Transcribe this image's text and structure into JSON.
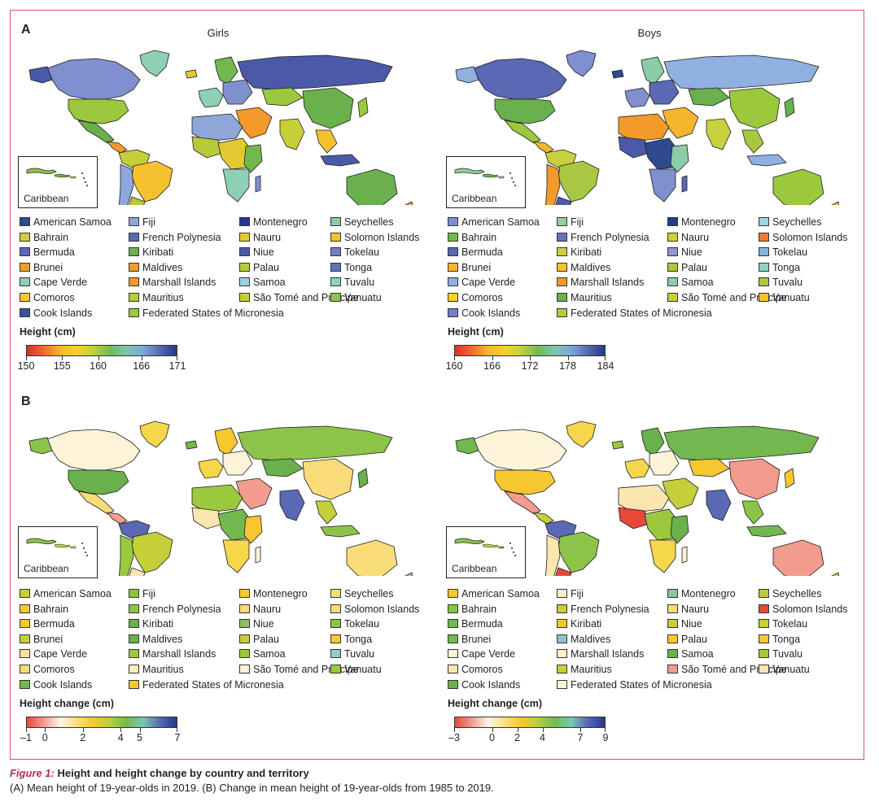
{
  "panels": [
    {
      "letter": "A",
      "maps": [
        {
          "title": "Girls",
          "inset_label": "Caribbean",
          "scale_title": "Height (cm)",
          "ticks": [
            "150",
            "155",
            "160",
            "166",
            "171"
          ],
          "tick_values": [
            150,
            155,
            160,
            166,
            171
          ],
          "domain": [
            150,
            171
          ],
          "items": [
            {
              "label": "American Samoa",
              "color": "#2f4a8e"
            },
            {
              "label": "Bahrain",
              "color": "#cfce3e"
            },
            {
              "label": "Bermuda",
              "color": "#5b68b4"
            },
            {
              "label": "Brunei",
              "color": "#f39a2a"
            },
            {
              "label": "Cape Verde",
              "color": "#8fd0b4"
            },
            {
              "label": "Comoros",
              "color": "#f7c62f"
            },
            {
              "label": "Cook Islands",
              "color": "#3a4f98"
            },
            {
              "label": "Fiji",
              "color": "#8ea7d8"
            },
            {
              "label": "French Polynesia",
              "color": "#5b68b4"
            },
            {
              "label": "Kiribati",
              "color": "#6ab04c"
            },
            {
              "label": "Maldives",
              "color": "#f39a2a"
            },
            {
              "label": "Marshall Islands",
              "color": "#f39a2a"
            },
            {
              "label": "Mauritius",
              "color": "#b8c93a"
            },
            {
              "label": "Federated States of Micronesia",
              "color": "#9cc83e"
            },
            {
              "label": "Montenegro",
              "color": "#23388e"
            },
            {
              "label": "Nauru",
              "color": "#e3c934"
            },
            {
              "label": "Niue",
              "color": "#4a5aa8"
            },
            {
              "label": "Palau",
              "color": "#b5cc3e"
            },
            {
              "label": "Samoa",
              "color": "#9bd0e6"
            },
            {
              "label": "São Tomé and Príncipe",
              "color": "#c6cf3a"
            },
            {
              "label": "Seychelles",
              "color": "#8ccca0"
            },
            {
              "label": "Solomon Islands",
              "color": "#f6c12e"
            },
            {
              "label": "Tokelau",
              "color": "#6f80c4"
            },
            {
              "label": "Tonga",
              "color": "#6573bc"
            },
            {
              "label": "Tuvalu",
              "color": "#8fd0c6"
            },
            {
              "label": "Vanuatu",
              "color": "#8cc44a"
            }
          ]
        },
        {
          "title": "Boys",
          "inset_label": "Caribbean",
          "scale_title": "Height (cm)",
          "ticks": [
            "160",
            "166",
            "172",
            "178",
            "184"
          ],
          "tick_values": [
            160,
            166,
            172,
            178,
            184
          ],
          "domain": [
            160,
            184
          ],
          "items": [
            {
              "label": "American Samoa",
              "color": "#7f8fcf"
            },
            {
              "label": "Bahrain",
              "color": "#72b84e"
            },
            {
              "label": "Bermuda",
              "color": "#5b68b4"
            },
            {
              "label": "Brunei",
              "color": "#f6b52e"
            },
            {
              "label": "Cape Verde",
              "color": "#8fb0e0"
            },
            {
              "label": "Comoros",
              "color": "#f8cf2e"
            },
            {
              "label": "Cook Islands",
              "color": "#6f80c4"
            },
            {
              "label": "Fiji",
              "color": "#94cf96"
            },
            {
              "label": "French Polynesia",
              "color": "#6573bc"
            },
            {
              "label": "Kiribati",
              "color": "#c9d040"
            },
            {
              "label": "Maldives",
              "color": "#f6c12e"
            },
            {
              "label": "Marshall Islands",
              "color": "#f39a2a"
            },
            {
              "label": "Mauritius",
              "color": "#6ab04c"
            },
            {
              "label": "Federated States of Micronesia",
              "color": "#b8c93a"
            },
            {
              "label": "Montenegro",
              "color": "#1e3c8e"
            },
            {
              "label": "Nauru",
              "color": "#cfce3e"
            },
            {
              "label": "Niue",
              "color": "#8e97d0"
            },
            {
              "label": "Palau",
              "color": "#a8c844"
            },
            {
              "label": "Samoa",
              "color": "#8ccca6"
            },
            {
              "label": "São Tomé and Príncipe",
              "color": "#c6cf3a"
            },
            {
              "label": "Seychelles",
              "color": "#9fd4e8"
            },
            {
              "label": "Solomon Islands",
              "color": "#f2782a"
            },
            {
              "label": "Tokelau",
              "color": "#80b8e0"
            },
            {
              "label": "Tonga",
              "color": "#8fd0c6"
            },
            {
              "label": "Tuvalu",
              "color": "#a8c844"
            },
            {
              "label": "Vanuatu",
              "color": "#f6c12e"
            }
          ]
        }
      ]
    },
    {
      "letter": "B",
      "maps": [
        {
          "title": "",
          "inset_label": "Caribbean",
          "scale_title": "Height change (cm)",
          "ticks": [
            "–1",
            "0",
            "2",
            "4",
            "5",
            "7"
          ],
          "tick_values": [
            -1,
            0,
            2,
            4,
            5,
            7
          ],
          "domain": [
            -1,
            7
          ],
          "items": [
            {
              "label": "American Samoa",
              "color": "#c4cf3a"
            },
            {
              "label": "Bahrain",
              "color": "#f6c72e"
            },
            {
              "label": "Bermuda",
              "color": "#f6c72e"
            },
            {
              "label": "Brunei",
              "color": "#c4cf3a"
            },
            {
              "label": "Cape Verde",
              "color": "#f9e0a0"
            },
            {
              "label": "Comoros",
              "color": "#f9dc7a"
            },
            {
              "label": "Cook Islands",
              "color": "#72b84e"
            },
            {
              "label": "Fiji",
              "color": "#8cc44a"
            },
            {
              "label": "French Polynesia",
              "color": "#8cc44a"
            },
            {
              "label": "Kiribati",
              "color": "#6ab04c"
            },
            {
              "label": "Maldives",
              "color": "#6ab04c"
            },
            {
              "label": "Marshall Islands",
              "color": "#9cc83e"
            },
            {
              "label": "Mauritius",
              "color": "#fcecc0"
            },
            {
              "label": "Federated States of Micronesia",
              "color": "#f6c72e"
            },
            {
              "label": "Montenegro",
              "color": "#f6c72e"
            },
            {
              "label": "Nauru",
              "color": "#f9dc7a"
            },
            {
              "label": "Niue",
              "color": "#8cc060"
            },
            {
              "label": "Palau",
              "color": "#c4cf3a"
            },
            {
              "label": "Samoa",
              "color": "#9cc83e"
            },
            {
              "label": "São Tomé and Príncipe",
              "color": "#fdf3d8"
            },
            {
              "label": "Seychelles",
              "color": "#f9dc7a"
            },
            {
              "label": "Solomon Islands",
              "color": "#f9dc7a"
            },
            {
              "label": "Tokelau",
              "color": "#8cc44a"
            },
            {
              "label": "Tonga",
              "color": "#f6c72e"
            },
            {
              "label": "Tuvalu",
              "color": "#8fcfc6"
            },
            {
              "label": "Vanuatu",
              "color": "#9cc83e"
            }
          ]
        },
        {
          "title": "",
          "inset_label": "Caribbean",
          "scale_title": "Height change (cm)",
          "ticks": [
            "–3",
            "0",
            "2",
            "4",
            "7",
            "9"
          ],
          "tick_values": [
            -3,
            0,
            2,
            4,
            7,
            9
          ],
          "domain": [
            -3,
            9
          ],
          "items": [
            {
              "label": "American Samoa",
              "color": "#f6c72e"
            },
            {
              "label": "Bahrain",
              "color": "#8cc44a"
            },
            {
              "label": "Bermuda",
              "color": "#72b84e"
            },
            {
              "label": "Brunei",
              "color": "#72b84e"
            },
            {
              "label": "Cape Verde",
              "color": "#fdf3d8"
            },
            {
              "label": "Comoros",
              "color": "#fbe6b0"
            },
            {
              "label": "Cook Islands",
              "color": "#6ab04c"
            },
            {
              "label": "Fiji",
              "color": "#fdf0c8"
            },
            {
              "label": "French Polynesia",
              "color": "#c4cf3a"
            },
            {
              "label": "Kiribati",
              "color": "#f6c72e"
            },
            {
              "label": "Maldives",
              "color": "#8fc4c6"
            },
            {
              "label": "Marshall Islands",
              "color": "#fdf0c8"
            },
            {
              "label": "Mauritius",
              "color": "#c4cf3a"
            },
            {
              "label": "Federated States of Micronesia",
              "color": "#fdf3d8"
            },
            {
              "label": "Montenegro",
              "color": "#8cc4a0"
            },
            {
              "label": "Nauru",
              "color": "#f9dc7a"
            },
            {
              "label": "Niue",
              "color": "#c4cf3a"
            },
            {
              "label": "Palau",
              "color": "#f6c72e"
            },
            {
              "label": "Samoa",
              "color": "#6ab04c"
            },
            {
              "label": "São Tomé and Príncipe",
              "color": "#f19c8e"
            },
            {
              "label": "Seychelles",
              "color": "#b8c93a"
            },
            {
              "label": "Solomon Islands",
              "color": "#e8473a"
            },
            {
              "label": "Tokelau",
              "color": "#c4cf3a"
            },
            {
              "label": "Tonga",
              "color": "#f6c72e"
            },
            {
              "label": "Tuvalu",
              "color": "#a8c844"
            },
            {
              "label": "Vanuatu",
              "color": "#fbe6b0"
            }
          ]
        }
      ]
    }
  ],
  "scale_colors": {
    "height": [
      "#d7302b",
      "#f36a2a",
      "#f8b42e",
      "#f5d22e",
      "#bcd33a",
      "#72bb50",
      "#78c8b0",
      "#7aa6d8",
      "#5866b4",
      "#233a8e"
    ],
    "change": [
      "#e8473a",
      "#f39a8e",
      "#fdf3e8",
      "#f9e07a",
      "#f6c72e",
      "#b8cf3a",
      "#72bb50",
      "#78c8b0",
      "#5866b4",
      "#233a8e"
    ]
  },
  "map_palette": {
    "A0": [
      "#8fd0b4",
      "#7f8fcf",
      "#4a5aa8",
      "#9cc83e",
      "#6ab04c",
      "#f39a2a",
      "#c6cf3a",
      "#f6c12e",
      "#8ea7d8",
      "#b8c93a",
      "#e3c934",
      "#72b84e"
    ],
    "A1": [
      "#7f8fcf",
      "#5b68b4",
      "#8fb0e0",
      "#6ab04c",
      "#9cc83e",
      "#f6b52e",
      "#c9d040",
      "#a8c844",
      "#f39a2a",
      "#4a5aa8",
      "#2f4a8e",
      "#8ccca6"
    ],
    "B0": [
      "#f6d64a",
      "#fdf3d8",
      "#8cc44a",
      "#6ab04c",
      "#f9dc7a",
      "#f19c8e",
      "#5b68b4",
      "#c4cf3a",
      "#9cc83e",
      "#fbe6b0",
      "#72b84e",
      "#f6c72e"
    ],
    "B1": [
      "#f6d64a",
      "#fdf3d8",
      "#72b84e",
      "#f6c72e",
      "#f19c8e",
      "#c4cf3a",
      "#5b68b4",
      "#8cc44a",
      "#fbe6b0",
      "#e8473a",
      "#9cc83e",
      "#6ab04c"
    ]
  },
  "caption": {
    "figure": "Figure 1:",
    "title": "Height and height change by country and territory",
    "text": "(A) Mean height of 19-year-olds in 2019. (B) Change in mean height of 19-year-olds from 1985 to 2019."
  }
}
